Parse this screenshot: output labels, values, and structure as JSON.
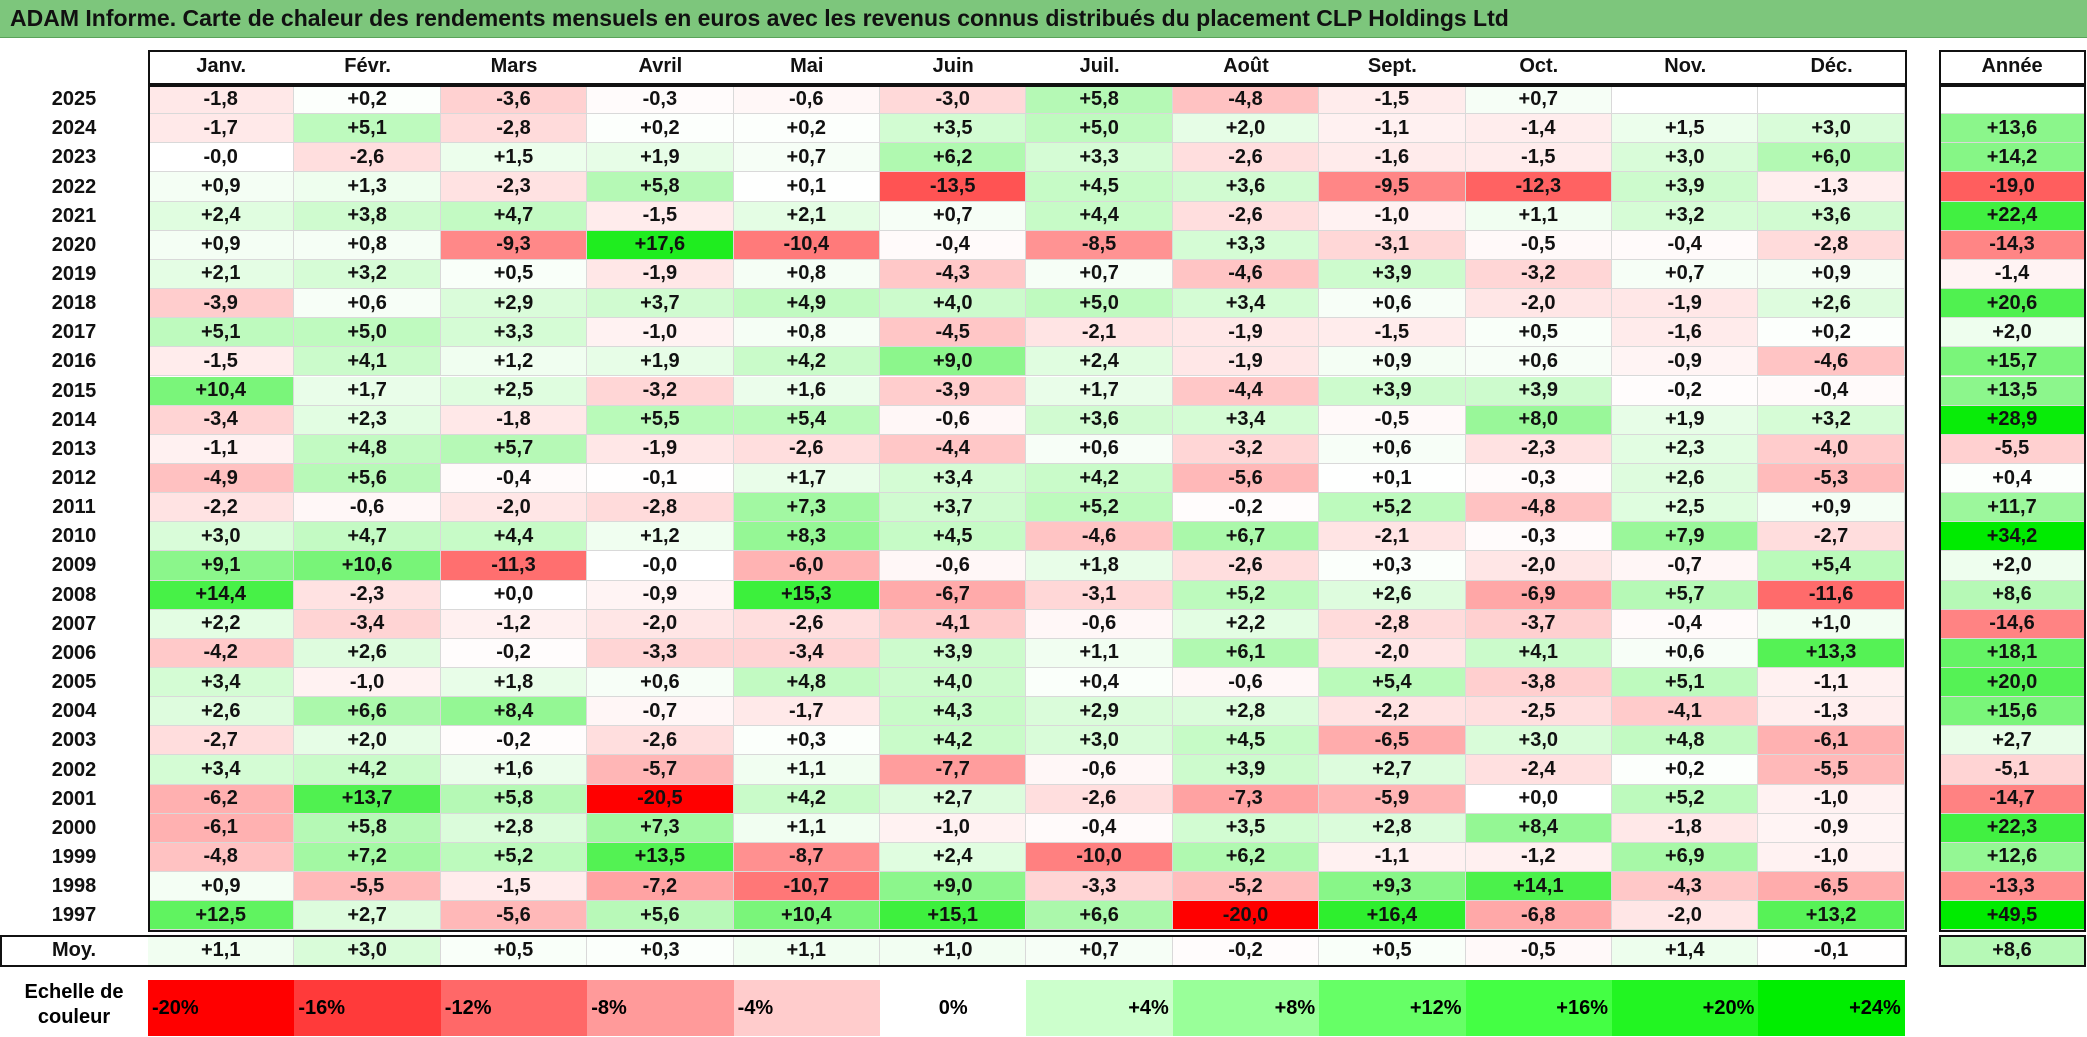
{
  "title": "ADAM Informe. Carte de chaleur des rendements mensuels en euros avec les revenus connus distribués du placement CLP Holdings Ltd",
  "chart_data": {
    "type": "heatmap",
    "title": "ADAM Informe. Carte de chaleur des rendements mensuels en euros avec les revenus connus distribués du placement CLP Holdings Ltd",
    "columns": [
      "Janv.",
      "Févr.",
      "Mars",
      "Avril",
      "Mai",
      "Juin",
      "Juil.",
      "Août",
      "Sept.",
      "Oct.",
      "Nov.",
      "Déc."
    ],
    "annual_header": "Année",
    "rows": [
      {
        "year": "2025",
        "values": [
          "-1,8",
          "+0,2",
          "-3,6",
          "-0,3",
          "-0,6",
          "-3,0",
          "+5,8",
          "-4,8",
          "-1,5",
          "+0,7",
          "",
          ""
        ],
        "annual": ""
      },
      {
        "year": "2024",
        "values": [
          "-1,7",
          "+5,1",
          "-2,8",
          "+0,2",
          "+0,2",
          "+3,5",
          "+5,0",
          "+2,0",
          "-1,1",
          "-1,4",
          "+1,5",
          "+3,0"
        ],
        "annual": "+13,6"
      },
      {
        "year": "2023",
        "values": [
          "-0,0",
          "-2,6",
          "+1,5",
          "+1,9",
          "+0,7",
          "+6,2",
          "+3,3",
          "-2,6",
          "-1,6",
          "-1,5",
          "+3,0",
          "+6,0"
        ],
        "annual": "+14,2"
      },
      {
        "year": "2022",
        "values": [
          "+0,9",
          "+1,3",
          "-2,3",
          "+5,8",
          "+0,1",
          "-13,5",
          "+4,5",
          "+3,6",
          "-9,5",
          "-12,3",
          "+3,9",
          "-1,3"
        ],
        "annual": "-19,0"
      },
      {
        "year": "2021",
        "values": [
          "+2,4",
          "+3,8",
          "+4,7",
          "-1,5",
          "+2,1",
          "+0,7",
          "+4,4",
          "-2,6",
          "-1,0",
          "+1,1",
          "+3,2",
          "+3,6"
        ],
        "annual": "+22,4"
      },
      {
        "year": "2020",
        "values": [
          "+0,9",
          "+0,8",
          "-9,3",
          "+17,6",
          "-10,4",
          "-0,4",
          "-8,5",
          "+3,3",
          "-3,1",
          "-0,5",
          "-0,4",
          "-2,8"
        ],
        "annual": "-14,3"
      },
      {
        "year": "2019",
        "values": [
          "+2,1",
          "+3,2",
          "+0,5",
          "-1,9",
          "+0,8",
          "-4,3",
          "+0,7",
          "-4,6",
          "+3,9",
          "-3,2",
          "+0,7",
          "+0,9"
        ],
        "annual": "-1,4"
      },
      {
        "year": "2018",
        "values": [
          "-3,9",
          "+0,6",
          "+2,9",
          "+3,7",
          "+4,9",
          "+4,0",
          "+5,0",
          "+3,4",
          "+0,6",
          "-2,0",
          "-1,9",
          "+2,6"
        ],
        "annual": "+20,6"
      },
      {
        "year": "2017",
        "values": [
          "+5,1",
          "+5,0",
          "+3,3",
          "-1,0",
          "+0,8",
          "-4,5",
          "-2,1",
          "-1,9",
          "-1,5",
          "+0,5",
          "-1,6",
          "+0,2"
        ],
        "annual": "+2,0"
      },
      {
        "year": "2016",
        "values": [
          "-1,5",
          "+4,1",
          "+1,2",
          "+1,9",
          "+4,2",
          "+9,0",
          "+2,4",
          "-1,9",
          "+0,9",
          "+0,6",
          "-0,9",
          "-4,6"
        ],
        "annual": "+15,7"
      },
      {
        "year": "2015",
        "values": [
          "+10,4",
          "+1,7",
          "+2,5",
          "-3,2",
          "+1,6",
          "-3,9",
          "+1,7",
          "-4,4",
          "+3,9",
          "+3,9",
          "-0,2",
          "-0,4"
        ],
        "annual": "+13,5"
      },
      {
        "year": "2014",
        "values": [
          "-3,4",
          "+2,3",
          "-1,8",
          "+5,5",
          "+5,4",
          "-0,6",
          "+3,6",
          "+3,4",
          "-0,5",
          "+8,0",
          "+1,9",
          "+3,2"
        ],
        "annual": "+28,9"
      },
      {
        "year": "2013",
        "values": [
          "-1,1",
          "+4,8",
          "+5,7",
          "-1,9",
          "-2,6",
          "-4,4",
          "+0,6",
          "-3,2",
          "+0,6",
          "-2,3",
          "+2,3",
          "-4,0"
        ],
        "annual": "-5,5"
      },
      {
        "year": "2012",
        "values": [
          "-4,9",
          "+5,6",
          "-0,4",
          "-0,1",
          "+1,7",
          "+3,4",
          "+4,2",
          "-5,6",
          "+0,1",
          "-0,3",
          "+2,6",
          "-5,3"
        ],
        "annual": "+0,4"
      },
      {
        "year": "2011",
        "values": [
          "-2,2",
          "-0,6",
          "-2,0",
          "-2,8",
          "+7,3",
          "+3,7",
          "+5,2",
          "-0,2",
          "+5,2",
          "-4,8",
          "+2,5",
          "+0,9"
        ],
        "annual": "+11,7"
      },
      {
        "year": "2010",
        "values": [
          "+3,0",
          "+4,7",
          "+4,4",
          "+1,2",
          "+8,3",
          "+4,5",
          "-4,6",
          "+6,7",
          "-2,1",
          "-0,3",
          "+7,9",
          "-2,7"
        ],
        "annual": "+34,2"
      },
      {
        "year": "2009",
        "values": [
          "+9,1",
          "+10,6",
          "-11,3",
          "-0,0",
          "-6,0",
          "-0,6",
          "+1,8",
          "-2,6",
          "+0,3",
          "-2,0",
          "-0,7",
          "+5,4"
        ],
        "annual": "+2,0"
      },
      {
        "year": "2008",
        "values": [
          "+14,4",
          "-2,3",
          "+0,0",
          "-0,9",
          "+15,3",
          "-6,7",
          "-3,1",
          "+5,2",
          "+2,6",
          "-6,9",
          "+5,7",
          "-11,6"
        ],
        "annual": "+8,6"
      },
      {
        "year": "2007",
        "values": [
          "+2,2",
          "-3,4",
          "-1,2",
          "-2,0",
          "-2,6",
          "-4,1",
          "-0,6",
          "+2,2",
          "-2,8",
          "-3,7",
          "-0,4",
          "+1,0"
        ],
        "annual": "-14,6"
      },
      {
        "year": "2006",
        "values": [
          "-4,2",
          "+2,6",
          "-0,2",
          "-3,3",
          "-3,4",
          "+3,9",
          "+1,1",
          "+6,1",
          "-2,0",
          "+4,1",
          "+0,6",
          "+13,3"
        ],
        "annual": "+18,1"
      },
      {
        "year": "2005",
        "values": [
          "+3,4",
          "-1,0",
          "+1,8",
          "+0,6",
          "+4,8",
          "+4,0",
          "+0,4",
          "-0,6",
          "+5,4",
          "-3,8",
          "+5,1",
          "-1,1"
        ],
        "annual": "+20,0"
      },
      {
        "year": "2004",
        "values": [
          "+2,6",
          "+6,6",
          "+8,4",
          "-0,7",
          "-1,7",
          "+4,3",
          "+2,9",
          "+2,8",
          "-2,2",
          "-2,5",
          "-4,1",
          "-1,3"
        ],
        "annual": "+15,6"
      },
      {
        "year": "2003",
        "values": [
          "-2,7",
          "+2,0",
          "-0,2",
          "-2,6",
          "+0,3",
          "+4,2",
          "+3,0",
          "+4,5",
          "-6,5",
          "+3,0",
          "+4,8",
          "-6,1"
        ],
        "annual": "+2,7"
      },
      {
        "year": "2002",
        "values": [
          "+3,4",
          "+4,2",
          "+1,6",
          "-5,7",
          "+1,1",
          "-7,7",
          "-0,6",
          "+3,9",
          "+2,7",
          "-2,4",
          "+0,2",
          "-5,5"
        ],
        "annual": "-5,1"
      },
      {
        "year": "2001",
        "values": [
          "-6,2",
          "+13,7",
          "+5,8",
          "-20,5",
          "+4,2",
          "+2,7",
          "-2,6",
          "-7,3",
          "-5,9",
          "+0,0",
          "+5,2",
          "-1,0"
        ],
        "annual": "-14,7"
      },
      {
        "year": "2000",
        "values": [
          "-6,1",
          "+5,8",
          "+2,8",
          "+7,3",
          "+1,1",
          "-1,0",
          "-0,4",
          "+3,5",
          "+2,8",
          "+8,4",
          "-1,8",
          "-0,9"
        ],
        "annual": "+22,3"
      },
      {
        "year": "1999",
        "values": [
          "-4,8",
          "+7,2",
          "+5,2",
          "+13,5",
          "-8,7",
          "+2,4",
          "-10,0",
          "+6,2",
          "-1,1",
          "-1,2",
          "+6,9",
          "-1,0"
        ],
        "annual": "+12,6"
      },
      {
        "year": "1998",
        "values": [
          "+0,9",
          "-5,5",
          "-1,5",
          "-7,2",
          "-10,7",
          "+9,0",
          "-3,3",
          "-5,2",
          "+9,3",
          "+14,1",
          "-4,3",
          "-6,5"
        ],
        "annual": "-13,3"
      },
      {
        "year": "1997",
        "values": [
          "+12,5",
          "+2,7",
          "-5,6",
          "+5,6",
          "+10,4",
          "+15,1",
          "+6,6",
          "-20,0",
          "+16,4",
          "-6,8",
          "-2,0",
          "+13,2"
        ],
        "annual": "+49,5"
      }
    ],
    "average": {
      "label": "Moy.",
      "values": [
        "+1,1",
        "+3,0",
        "+0,5",
        "+0,3",
        "+1,1",
        "+1,0",
        "+0,7",
        "-0,2",
        "+0,5",
        "-0,5",
        "+1,4",
        "-0,1"
      ],
      "annual": "+8,6"
    },
    "color_scale": {
      "label": "Echelle de couleur",
      "steps": [
        "-20%",
        "-16%",
        "-12%",
        "-8%",
        "-4%",
        "0%",
        "+4%",
        "+8%",
        "+12%",
        "+16%",
        "+20%",
        "+24%"
      ],
      "negative_color": "#ff0000",
      "neutral_color": "#ffffff",
      "positive_color": "#00ee00"
    }
  }
}
